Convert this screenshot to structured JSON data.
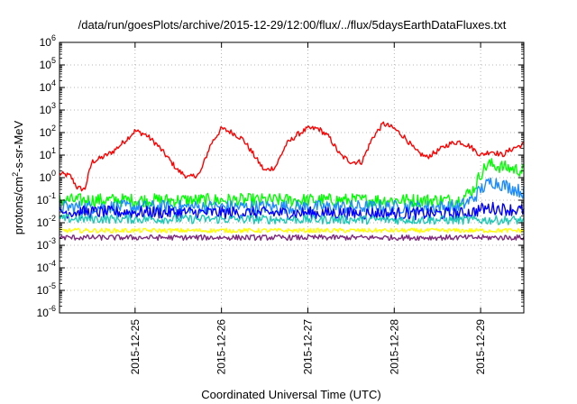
{
  "chart_data": {
    "type": "line",
    "title": "/data/run/goesPlots/archive/2015-12-29/12:00/flux/../flux/5daysEarthDataFluxes.txt",
    "xlabel": "Coordinated Universal Time (UTC)",
    "ylabel": {
      "base": "protons/cm",
      "exponent": "2",
      "suffix": "-s-sr-MeV"
    },
    "y_scale": "log",
    "ylim": [
      1e-06,
      1000000.0
    ],
    "y_ticks": [
      {
        "value": 1e-06,
        "base": "10",
        "exp": "-6"
      },
      {
        "value": 1e-05,
        "base": "10",
        "exp": "-5"
      },
      {
        "value": 0.0001,
        "base": "10",
        "exp": "-4"
      },
      {
        "value": 0.001,
        "base": "10",
        "exp": "-3"
      },
      {
        "value": 0.01,
        "base": "10",
        "exp": "-2"
      },
      {
        "value": 0.1,
        "base": "10",
        "exp": "-1"
      },
      {
        "value": 1,
        "base": "10",
        "exp": "0"
      },
      {
        "value": 10,
        "base": "10",
        "exp": "1"
      },
      {
        "value": 100,
        "base": "10",
        "exp": "2"
      },
      {
        "value": 1000,
        "base": "10",
        "exp": "3"
      },
      {
        "value": 10000,
        "base": "10",
        "exp": "4"
      },
      {
        "value": 100000,
        "base": "10",
        "exp": "5"
      },
      {
        "value": 1000000,
        "base": "10",
        "exp": "6"
      }
    ],
    "xlim": [
      "2015-12-24 03:00",
      "2015-12-29 12:00"
    ],
    "x_ticks": [
      "2015-12-25",
      "2015-12-26",
      "2015-12-27",
      "2015-12-28",
      "2015-12-29"
    ],
    "grid": true,
    "legend": "none",
    "series": [
      {
        "color": "#ff0000",
        "noise": 0.12,
        "points": [
          [
            "2015-12-24 03:00",
            1.5
          ],
          [
            "2015-12-24 06:00",
            1.2
          ],
          [
            "2015-12-24 08:00",
            0.35
          ],
          [
            "2015-12-24 10:00",
            0.3
          ],
          [
            "2015-12-24 12:00",
            5
          ],
          [
            "2015-12-24 15:00",
            8
          ],
          [
            "2015-12-24 18:00",
            15
          ],
          [
            "2015-12-24 21:00",
            40
          ],
          [
            "2015-12-25 00:00",
            120
          ],
          [
            "2015-12-25 03:00",
            80
          ],
          [
            "2015-12-25 06:00",
            30
          ],
          [
            "2015-12-25 09:00",
            8
          ],
          [
            "2015-12-25 12:00",
            2
          ],
          [
            "2015-12-25 15:00",
            1
          ],
          [
            "2015-12-25 18:00",
            1.5
          ],
          [
            "2015-12-25 21:00",
            30
          ],
          [
            "2015-12-26 00:00",
            150
          ],
          [
            "2015-12-26 03:00",
            100
          ],
          [
            "2015-12-26 06:00",
            50
          ],
          [
            "2015-12-26 09:00",
            10
          ],
          [
            "2015-12-26 12:00",
            2
          ],
          [
            "2015-12-26 15:00",
            3
          ],
          [
            "2015-12-26 18:00",
            30
          ],
          [
            "2015-12-26 21:00",
            80
          ],
          [
            "2015-12-27 00:00",
            150
          ],
          [
            "2015-12-27 03:00",
            150
          ],
          [
            "2015-12-27 06:00",
            60
          ],
          [
            "2015-12-27 09:00",
            10
          ],
          [
            "2015-12-27 12:00",
            5
          ],
          [
            "2015-12-27 15:00",
            5
          ],
          [
            "2015-12-27 18:00",
            60
          ],
          [
            "2015-12-27 21:00",
            250
          ],
          [
            "2015-12-28 00:00",
            150
          ],
          [
            "2015-12-28 03:00",
            60
          ],
          [
            "2015-12-28 06:00",
            15
          ],
          [
            "2015-12-28 09:00",
            8
          ],
          [
            "2015-12-28 12:00",
            15
          ],
          [
            "2015-12-28 15:00",
            30
          ],
          [
            "2015-12-28 18:00",
            40
          ],
          [
            "2015-12-28 21:00",
            25
          ],
          [
            "2015-12-29 00:00",
            10
          ],
          [
            "2015-12-29 03:00",
            15
          ],
          [
            "2015-12-29 06:00",
            10
          ],
          [
            "2015-12-29 09:00",
            20
          ],
          [
            "2015-12-29 12:00",
            30
          ]
        ]
      },
      {
        "color": "#00ff00",
        "noise": 0.3,
        "points": [
          [
            "2015-12-24 03:00",
            0.1
          ],
          [
            "2015-12-28 18:00",
            0.1
          ],
          [
            "2015-12-28 22:00",
            0.3
          ],
          [
            "2015-12-29 00:00",
            1.5
          ],
          [
            "2015-12-29 02:00",
            4
          ],
          [
            "2015-12-29 06:00",
            3
          ],
          [
            "2015-12-29 12:00",
            2
          ]
        ]
      },
      {
        "color": "#1e8cff",
        "noise": 0.3,
        "points": [
          [
            "2015-12-24 03:00",
            0.05
          ],
          [
            "2015-12-28 18:00",
            0.05
          ],
          [
            "2015-12-28 22:00",
            0.12
          ],
          [
            "2015-12-29 00:00",
            0.3
          ],
          [
            "2015-12-29 03:00",
            0.7
          ],
          [
            "2015-12-29 06:00",
            0.5
          ],
          [
            "2015-12-29 12:00",
            0.22
          ]
        ]
      },
      {
        "color": "#0000ff",
        "noise": 0.28,
        "points": [
          [
            "2015-12-24 03:00",
            0.03
          ],
          [
            "2015-12-28 18:00",
            0.025
          ],
          [
            "2015-12-28 22:00",
            0.03
          ],
          [
            "2015-12-29 00:00",
            0.04
          ],
          [
            "2015-12-29 03:00",
            0.045
          ],
          [
            "2015-12-29 12:00",
            0.035
          ]
        ]
      },
      {
        "color": "#1ec8b4",
        "noise": 0.2,
        "points": [
          [
            "2015-12-24 03:00",
            0.015
          ],
          [
            "2015-12-29 12:00",
            0.013
          ]
        ]
      },
      {
        "color": "#ffff00",
        "noise": 0.1,
        "points": [
          [
            "2015-12-24 03:00",
            0.0045
          ],
          [
            "2015-12-29 12:00",
            0.0045
          ]
        ]
      },
      {
        "color": "#7d2a7d",
        "noise": 0.12,
        "points": [
          [
            "2015-12-24 03:00",
            0.0022
          ],
          [
            "2015-12-29 12:00",
            0.0022
          ]
        ]
      }
    ]
  }
}
